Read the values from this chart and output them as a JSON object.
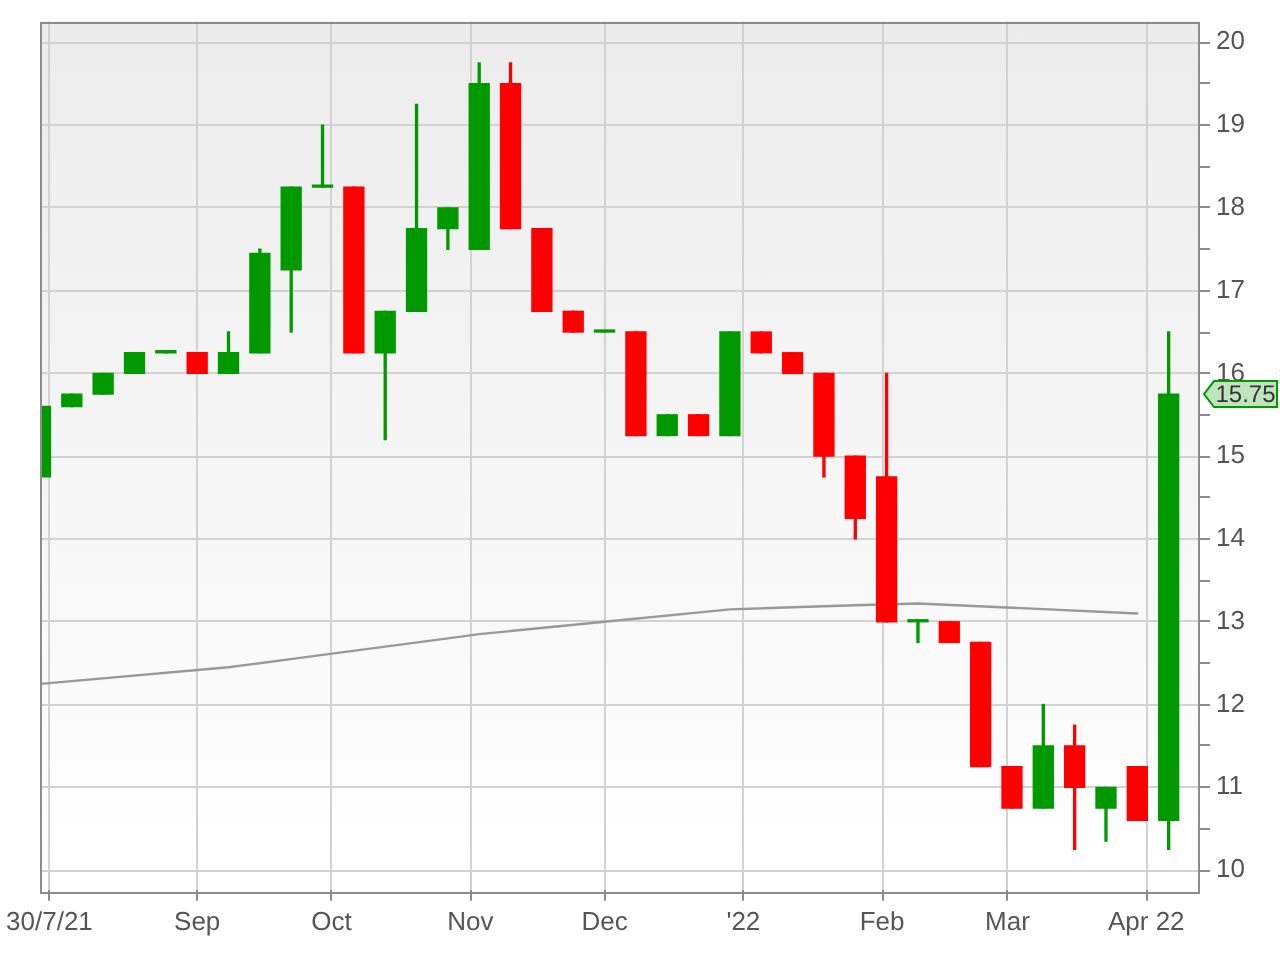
{
  "chart_data": {
    "type": "candlestick",
    "x": [
      "2021-07-28",
      "2021-08-04",
      "2021-08-11",
      "2021-08-18",
      "2021-08-25",
      "2021-09-01",
      "2021-09-08",
      "2021-09-15",
      "2021-09-22",
      "2021-09-29",
      "2021-10-06",
      "2021-10-13",
      "2021-10-20",
      "2021-10-27",
      "2021-11-03",
      "2021-11-10",
      "2021-11-17",
      "2021-11-24",
      "2021-12-01",
      "2021-12-08",
      "2021-12-15",
      "2021-12-22",
      "2021-12-29",
      "2022-01-05",
      "2022-01-12",
      "2022-01-19",
      "2022-01-26",
      "2022-02-02",
      "2022-02-09",
      "2022-02-16",
      "2022-02-23",
      "2022-03-02",
      "2022-03-09",
      "2022-03-16",
      "2022-03-23",
      "2022-03-30",
      "2022-04-06"
    ],
    "ohlc": [
      [
        14.75,
        15.6,
        14.75,
        15.6
      ],
      [
        15.6,
        15.75,
        15.6,
        15.75
      ],
      [
        15.75,
        16.0,
        15.75,
        16.0
      ],
      [
        16.0,
        16.25,
        16.0,
        16.25
      ],
      [
        16.25,
        16.25,
        16.25,
        16.25
      ],
      [
        16.25,
        16.25,
        16.0,
        16.0
      ],
      [
        16.0,
        16.5,
        16.0,
        16.25
      ],
      [
        16.25,
        17.5,
        16.25,
        17.45
      ],
      [
        17.25,
        18.25,
        16.5,
        18.25
      ],
      [
        18.25,
        19.0,
        18.25,
        18.25
      ],
      [
        18.25,
        18.25,
        16.25,
        16.25
      ],
      [
        16.25,
        16.75,
        15.2,
        16.75
      ],
      [
        16.75,
        19.25,
        16.75,
        17.75
      ],
      [
        17.75,
        18.0,
        17.5,
        18.0
      ],
      [
        17.5,
        19.75,
        17.5,
        19.5
      ],
      [
        19.5,
        19.75,
        17.75,
        17.75
      ],
      [
        17.75,
        17.75,
        16.75,
        16.75
      ],
      [
        16.75,
        16.75,
        16.5,
        16.5
      ],
      [
        16.5,
        16.5,
        16.5,
        16.5
      ],
      [
        16.5,
        16.5,
        15.25,
        15.25
      ],
      [
        15.25,
        15.5,
        15.25,
        15.5
      ],
      [
        15.5,
        15.5,
        15.25,
        15.25
      ],
      [
        15.25,
        16.5,
        15.25,
        16.5
      ],
      [
        16.5,
        16.5,
        16.25,
        16.25
      ],
      [
        16.25,
        16.25,
        16.0,
        16.0
      ],
      [
        16.0,
        16.0,
        14.75,
        15.0
      ],
      [
        15.0,
        15.0,
        14.0,
        14.25
      ],
      [
        14.75,
        16.0,
        13.0,
        13.0
      ],
      [
        13.0,
        13.0,
        12.75,
        13.0
      ],
      [
        13.0,
        13.0,
        12.75,
        12.75
      ],
      [
        12.75,
        12.75,
        11.25,
        11.25
      ],
      [
        11.25,
        11.25,
        10.75,
        10.75
      ],
      [
        10.75,
        12.0,
        10.75,
        11.5
      ],
      [
        11.5,
        11.75,
        10.25,
        11.0
      ],
      [
        10.75,
        11.0,
        10.35,
        11.0
      ],
      [
        11.25,
        11.25,
        10.6,
        10.6
      ],
      [
        10.6,
        16.5,
        10.25,
        15.75
      ]
    ],
    "colors": [
      "#009900",
      "#009900",
      "#009900",
      "#009900",
      "#009900",
      "#ff0000",
      "#009900",
      "#009900",
      "#009900",
      "#009900",
      "#ff0000",
      "#009900",
      "#009900",
      "#009900",
      "#009900",
      "#ff0000",
      "#ff0000",
      "#ff0000",
      "#009900",
      "#ff0000",
      "#009900",
      "#ff0000",
      "#009900",
      "#ff0000",
      "#ff0000",
      "#ff0000",
      "#ff0000",
      "#ff0000",
      "#009900",
      "#ff0000",
      "#ff0000",
      "#ff0000",
      "#009900",
      "#ff0000",
      "#009900",
      "#ff0000",
      "#009900"
    ],
    "series": [
      {
        "type": "line",
        "color": "#999999",
        "x": [
          "2021-07-28",
          "2021-09-08",
          "2021-09-29",
          "2021-10-27",
          "2021-11-03",
          "2021-12-01",
          "2021-12-29",
          "2022-01-26",
          "2022-02-09",
          "2022-03-02",
          "2022-03-30"
        ],
        "values": [
          12.25,
          12.45,
          12.6,
          12.8,
          12.85,
          13.0,
          13.15,
          13.2,
          13.22,
          13.17,
          13.1
        ]
      }
    ],
    "xlim": [
      "2021-07-28",
      "2022-04-13"
    ],
    "xticks": [
      {
        "value": "2021-07-30",
        "label": "30/7/21"
      },
      {
        "value": "2021-09-01",
        "label": "Sep"
      },
      {
        "value": "2021-10-01",
        "label": "Oct"
      },
      {
        "value": "2021-11-01",
        "label": "Nov"
      },
      {
        "value": "2021-12-01",
        "label": "Dec"
      },
      {
        "value": "2022-01-01",
        "label": "'22"
      },
      {
        "value": "2022-02-01",
        "label": "Feb"
      },
      {
        "value": "2022-03-01",
        "label": "Mar"
      },
      {
        "value": "2022-04-01",
        "label": "Apr 22"
      }
    ],
    "ylim": [
      9.75,
      20.25
    ],
    "yticks": [
      10,
      {
        "value": 10.5,
        "label": null
      },
      11,
      {
        "value": 11.5,
        "label": null
      },
      12,
      {
        "value": 12.5,
        "label": null
      },
      13,
      {
        "value": 13.5,
        "label": null
      },
      14,
      {
        "value": 14.5,
        "label": null
      },
      15,
      {
        "value": 15.5,
        "label": null
      },
      16,
      {
        "value": 16.5,
        "label": null
      },
      17,
      {
        "value": 17.5,
        "label": null
      },
      18,
      {
        "value": 18.5,
        "label": null
      },
      19,
      {
        "value": 19.5,
        "label": null
      },
      20
    ],
    "annotations": [
      "15.75"
    ],
    "grid": true
  }
}
